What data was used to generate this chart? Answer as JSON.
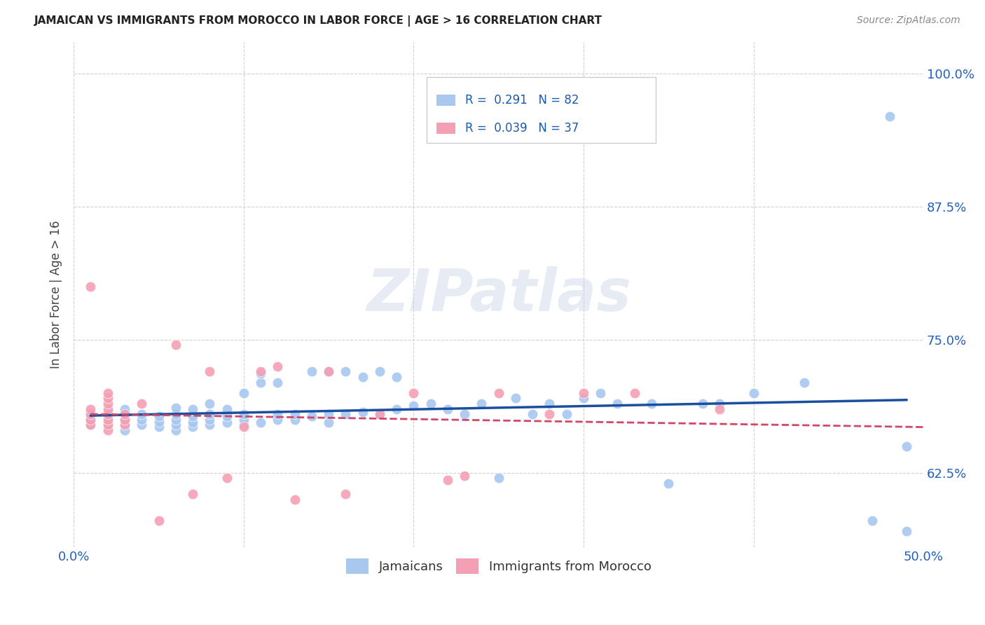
{
  "title": "JAMAICAN VS IMMIGRANTS FROM MOROCCO IN LABOR FORCE | AGE > 16 CORRELATION CHART",
  "source": "Source: ZipAtlas.com",
  "ylabel": "In Labor Force | Age > 16",
  "xlim": [
    0.0,
    0.5
  ],
  "ylim": [
    0.555,
    1.03
  ],
  "yticks": [
    0.625,
    0.75,
    0.875,
    1.0
  ],
  "ytick_labels": [
    "62.5%",
    "75.0%",
    "87.5%",
    "100.0%"
  ],
  "xticks": [
    0.0,
    0.1,
    0.2,
    0.3,
    0.4,
    0.5
  ],
  "xtick_labels": [
    "0.0%",
    "",
    "",
    "",
    "",
    "50.0%"
  ],
  "blue_color": "#a8c8f0",
  "pink_color": "#f4a0b4",
  "blue_line_color": "#1a4fa0",
  "pink_line_color": "#d04868",
  "R_blue": 0.291,
  "N_blue": 82,
  "R_pink": 0.039,
  "N_pink": 37,
  "watermark": "ZIPatlas",
  "blue_scatter_x": [
    0.01,
    0.01,
    0.01,
    0.02,
    0.02,
    0.02,
    0.02,
    0.03,
    0.03,
    0.03,
    0.03,
    0.03,
    0.04,
    0.04,
    0.04,
    0.05,
    0.05,
    0.05,
    0.06,
    0.06,
    0.06,
    0.06,
    0.06,
    0.07,
    0.07,
    0.07,
    0.07,
    0.08,
    0.08,
    0.08,
    0.08,
    0.09,
    0.09,
    0.09,
    0.1,
    0.1,
    0.1,
    0.1,
    0.11,
    0.11,
    0.11,
    0.12,
    0.12,
    0.12,
    0.13,
    0.13,
    0.14,
    0.14,
    0.15,
    0.15,
    0.15,
    0.16,
    0.16,
    0.17,
    0.17,
    0.18,
    0.18,
    0.19,
    0.19,
    0.2,
    0.21,
    0.22,
    0.23,
    0.24,
    0.25,
    0.26,
    0.27,
    0.28,
    0.29,
    0.3,
    0.31,
    0.32,
    0.34,
    0.35,
    0.37,
    0.38,
    0.4,
    0.43,
    0.47,
    0.48,
    0.49,
    0.49
  ],
  "blue_scatter_y": [
    0.67,
    0.675,
    0.68,
    0.668,
    0.672,
    0.678,
    0.682,
    0.665,
    0.67,
    0.675,
    0.68,
    0.685,
    0.67,
    0.675,
    0.68,
    0.668,
    0.673,
    0.678,
    0.665,
    0.67,
    0.675,
    0.68,
    0.686,
    0.668,
    0.672,
    0.678,
    0.685,
    0.67,
    0.675,
    0.68,
    0.69,
    0.672,
    0.678,
    0.685,
    0.67,
    0.675,
    0.68,
    0.7,
    0.672,
    0.71,
    0.718,
    0.675,
    0.68,
    0.71,
    0.675,
    0.68,
    0.678,
    0.72,
    0.672,
    0.68,
    0.72,
    0.68,
    0.72,
    0.682,
    0.715,
    0.68,
    0.72,
    0.685,
    0.715,
    0.688,
    0.69,
    0.685,
    0.68,
    0.69,
    0.62,
    0.695,
    0.68,
    0.69,
    0.68,
    0.695,
    0.7,
    0.69,
    0.69,
    0.615,
    0.69,
    0.69,
    0.7,
    0.71,
    0.58,
    0.96,
    0.57,
    0.65
  ],
  "pink_scatter_x": [
    0.01,
    0.01,
    0.01,
    0.01,
    0.01,
    0.02,
    0.02,
    0.02,
    0.02,
    0.02,
    0.02,
    0.02,
    0.02,
    0.03,
    0.03,
    0.03,
    0.04,
    0.05,
    0.06,
    0.07,
    0.08,
    0.09,
    0.1,
    0.11,
    0.12,
    0.13,
    0.15,
    0.16,
    0.18,
    0.2,
    0.22,
    0.23,
    0.25,
    0.28,
    0.3,
    0.33,
    0.38
  ],
  "pink_scatter_y": [
    0.67,
    0.675,
    0.68,
    0.685,
    0.8,
    0.665,
    0.67,
    0.675,
    0.68,
    0.685,
    0.69,
    0.695,
    0.7,
    0.67,
    0.675,
    0.68,
    0.69,
    0.58,
    0.745,
    0.605,
    0.72,
    0.62,
    0.668,
    0.72,
    0.725,
    0.6,
    0.72,
    0.605,
    0.68,
    0.7,
    0.618,
    0.622,
    0.7,
    0.68,
    0.7,
    0.7,
    0.685
  ]
}
